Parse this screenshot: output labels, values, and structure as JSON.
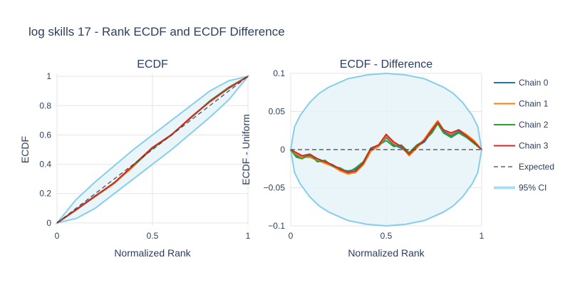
{
  "title": "log skills 17 - Rank ECDF and ECDF Difference",
  "colors": {
    "chain0": "#1f77b4",
    "chain1": "#ff7f0e",
    "chain2": "#2ca02c",
    "chain3": "#d62728",
    "expected": "#444444",
    "ci_line": "#87ceeb",
    "ci_fill": "#e6f3f9",
    "grid": "#e5e5e5",
    "text": "#2a3f5f"
  },
  "legend": {
    "placement": "right",
    "items": [
      {
        "label": "Chain 0",
        "key": "chain0",
        "style": "solid"
      },
      {
        "label": "Chain 1",
        "key": "chain1",
        "style": "solid"
      },
      {
        "label": "Chain 2",
        "key": "chain2",
        "style": "solid"
      },
      {
        "label": "Chain 3",
        "key": "chain3",
        "style": "solid"
      },
      {
        "label": "Expected",
        "key": "expected",
        "style": "dash"
      },
      {
        "label": "95% CI",
        "key": "ci_line",
        "style": "band"
      }
    ]
  },
  "chart_data": [
    {
      "type": "line",
      "title": "ECDF",
      "xlabel": "Normalized Rank",
      "ylabel": "ECDF",
      "xlim": [
        0,
        1
      ],
      "ylim": [
        -0.02,
        1.02
      ],
      "xticks": [
        {
          "value": 0,
          "label": "0"
        },
        {
          "value": 0.5,
          "label": "0.5"
        },
        {
          "value": 1,
          "label": "1"
        }
      ],
      "yticks": [
        {
          "value": 0,
          "label": "0"
        },
        {
          "value": 0.2,
          "label": "0.2"
        },
        {
          "value": 0.4,
          "label": "0.4"
        },
        {
          "value": 0.6,
          "label": "0.6"
        },
        {
          "value": 0.8,
          "label": "0.8"
        },
        {
          "value": 1,
          "label": "1"
        }
      ],
      "grid": true,
      "ci_band": {
        "x": [
          0,
          0.1,
          0.2,
          0.3,
          0.4,
          0.5,
          0.6,
          0.7,
          0.8,
          0.9,
          1.0
        ],
        "lower": [
          0,
          0.03,
          0.1,
          0.2,
          0.3,
          0.4,
          0.5,
          0.61,
          0.72,
          0.84,
          1.0
        ],
        "upper": [
          0,
          0.16,
          0.28,
          0.39,
          0.5,
          0.6,
          0.7,
          0.8,
          0.9,
          0.97,
          1.0
        ]
      },
      "expected": {
        "x": [
          0,
          1
        ],
        "y": [
          0,
          1
        ]
      },
      "series": [
        {
          "name": "Chain 0",
          "key": "chain0",
          "x": [
            0,
            0.1,
            0.2,
            0.3,
            0.4,
            0.5,
            0.6,
            0.7,
            0.8,
            0.9,
            1.0
          ],
          "y": [
            0,
            0.092,
            0.185,
            0.272,
            0.39,
            0.51,
            0.6,
            0.72,
            0.83,
            0.92,
            1.0
          ]
        },
        {
          "name": "Chain 1",
          "key": "chain1",
          "x": [
            0,
            0.1,
            0.2,
            0.3,
            0.4,
            0.5,
            0.6,
            0.7,
            0.8,
            0.9,
            1.0
          ],
          "y": [
            0,
            0.09,
            0.18,
            0.27,
            0.385,
            0.51,
            0.598,
            0.72,
            0.828,
            0.922,
            1.0
          ]
        },
        {
          "name": "Chain 2",
          "key": "chain2",
          "x": [
            0,
            0.1,
            0.2,
            0.3,
            0.4,
            0.5,
            0.6,
            0.7,
            0.8,
            0.9,
            1.0
          ],
          "y": [
            0,
            0.088,
            0.183,
            0.275,
            0.392,
            0.508,
            0.603,
            0.715,
            0.832,
            0.925,
            1.0
          ]
        },
        {
          "name": "Chain 3",
          "key": "chain3",
          "x": [
            0,
            0.1,
            0.2,
            0.3,
            0.4,
            0.5,
            0.6,
            0.7,
            0.8,
            0.9,
            1.0
          ],
          "y": [
            0,
            0.09,
            0.182,
            0.274,
            0.395,
            0.515,
            0.602,
            0.718,
            0.826,
            0.92,
            1.0
          ]
        }
      ]
    },
    {
      "type": "line",
      "title": "ECDF - Difference",
      "xlabel": "Normalized Rank",
      "ylabel": "ECDF - Uniform",
      "xlim": [
        0,
        1
      ],
      "ylim": [
        -0.1,
        0.1
      ],
      "xticks": [
        {
          "value": 0,
          "label": "0"
        },
        {
          "value": 0.5,
          "label": "0.5"
        },
        {
          "value": 1,
          "label": "1"
        }
      ],
      "yticks": [
        {
          "value": 0.1,
          "label": "0.1"
        },
        {
          "value": 0.05,
          "label": "0.05"
        },
        {
          "value": 0,
          "label": "0"
        },
        {
          "value": -0.05,
          "label": "−0.05"
        },
        {
          "value": -0.1,
          "label": "−0.1"
        }
      ],
      "grid": true,
      "ci_band": {
        "x": [
          0,
          0.02,
          0.05,
          0.1,
          0.15,
          0.2,
          0.3,
          0.4,
          0.5,
          0.6,
          0.7,
          0.8,
          0.85,
          0.9,
          0.95,
          0.98,
          1.0
        ],
        "lower": [
          0,
          -0.03,
          -0.045,
          -0.062,
          -0.074,
          -0.082,
          -0.093,
          -0.098,
          -0.1,
          -0.098,
          -0.093,
          -0.082,
          -0.074,
          -0.062,
          -0.045,
          -0.03,
          0
        ],
        "upper": [
          0,
          0.03,
          0.045,
          0.062,
          0.074,
          0.082,
          0.093,
          0.098,
          0.1,
          0.098,
          0.093,
          0.082,
          0.074,
          0.062,
          0.045,
          0.03,
          0
        ]
      },
      "expected": {
        "x": [
          0,
          1
        ],
        "y": [
          0,
          0
        ]
      },
      "series": [
        {
          "name": "Chain 0",
          "key": "chain0",
          "x": [
            0,
            0.03,
            0.06,
            0.1,
            0.14,
            0.18,
            0.22,
            0.26,
            0.3,
            0.34,
            0.38,
            0.42,
            0.46,
            0.5,
            0.54,
            0.58,
            0.62,
            0.66,
            0.7,
            0.74,
            0.77,
            0.8,
            0.84,
            0.88,
            0.92,
            0.96,
            1.0
          ],
          "y": [
            0,
            -0.008,
            -0.01,
            -0.008,
            -0.012,
            -0.016,
            -0.02,
            -0.026,
            -0.028,
            -0.026,
            -0.018,
            0.0,
            0.004,
            0.016,
            0.006,
            0.002,
            -0.006,
            0.004,
            0.01,
            0.024,
            0.036,
            0.024,
            0.018,
            0.024,
            0.018,
            0.01,
            0.0
          ]
        },
        {
          "name": "Chain 1",
          "key": "chain1",
          "x": [
            0,
            0.03,
            0.06,
            0.1,
            0.14,
            0.18,
            0.22,
            0.26,
            0.3,
            0.34,
            0.38,
            0.42,
            0.46,
            0.5,
            0.54,
            0.58,
            0.62,
            0.66,
            0.7,
            0.74,
            0.77,
            0.8,
            0.84,
            0.88,
            0.92,
            0.96,
            1.0
          ],
          "y": [
            0,
            -0.006,
            -0.01,
            -0.01,
            -0.014,
            -0.018,
            -0.022,
            -0.028,
            -0.032,
            -0.03,
            -0.02,
            -0.002,
            0.004,
            0.018,
            0.008,
            0.004,
            -0.008,
            0.002,
            0.014,
            0.028,
            0.038,
            0.026,
            0.02,
            0.026,
            0.02,
            0.012,
            0.0
          ]
        },
        {
          "name": "Chain 2",
          "key": "chain2",
          "x": [
            0,
            0.03,
            0.06,
            0.1,
            0.14,
            0.18,
            0.22,
            0.26,
            0.3,
            0.34,
            0.38,
            0.42,
            0.46,
            0.5,
            0.54,
            0.58,
            0.62,
            0.66,
            0.7,
            0.74,
            0.77,
            0.8,
            0.84,
            0.88,
            0.92,
            0.96,
            1.0
          ],
          "y": [
            0,
            -0.01,
            -0.012,
            -0.006,
            -0.016,
            -0.014,
            -0.022,
            -0.024,
            -0.03,
            -0.024,
            -0.016,
            0.002,
            0.006,
            0.012,
            0.004,
            0.006,
            -0.004,
            0.006,
            0.012,
            0.022,
            0.034,
            0.022,
            0.016,
            0.022,
            0.016,
            0.008,
            0.0
          ]
        },
        {
          "name": "Chain 3",
          "key": "chain3",
          "x": [
            0,
            0.03,
            0.06,
            0.1,
            0.14,
            0.18,
            0.22,
            0.26,
            0.3,
            0.34,
            0.38,
            0.42,
            0.46,
            0.5,
            0.54,
            0.58,
            0.62,
            0.66,
            0.7,
            0.74,
            0.77,
            0.8,
            0.84,
            0.88,
            0.92,
            0.96,
            1.0
          ],
          "y": [
            0,
            -0.004,
            -0.008,
            -0.006,
            -0.012,
            -0.016,
            -0.02,
            -0.026,
            -0.03,
            -0.028,
            -0.018,
            0.002,
            0.006,
            0.02,
            0.01,
            0.004,
            -0.006,
            0.004,
            0.012,
            0.026,
            0.036,
            0.026,
            0.022,
            0.026,
            0.018,
            0.01,
            0.0
          ]
        }
      ]
    }
  ]
}
